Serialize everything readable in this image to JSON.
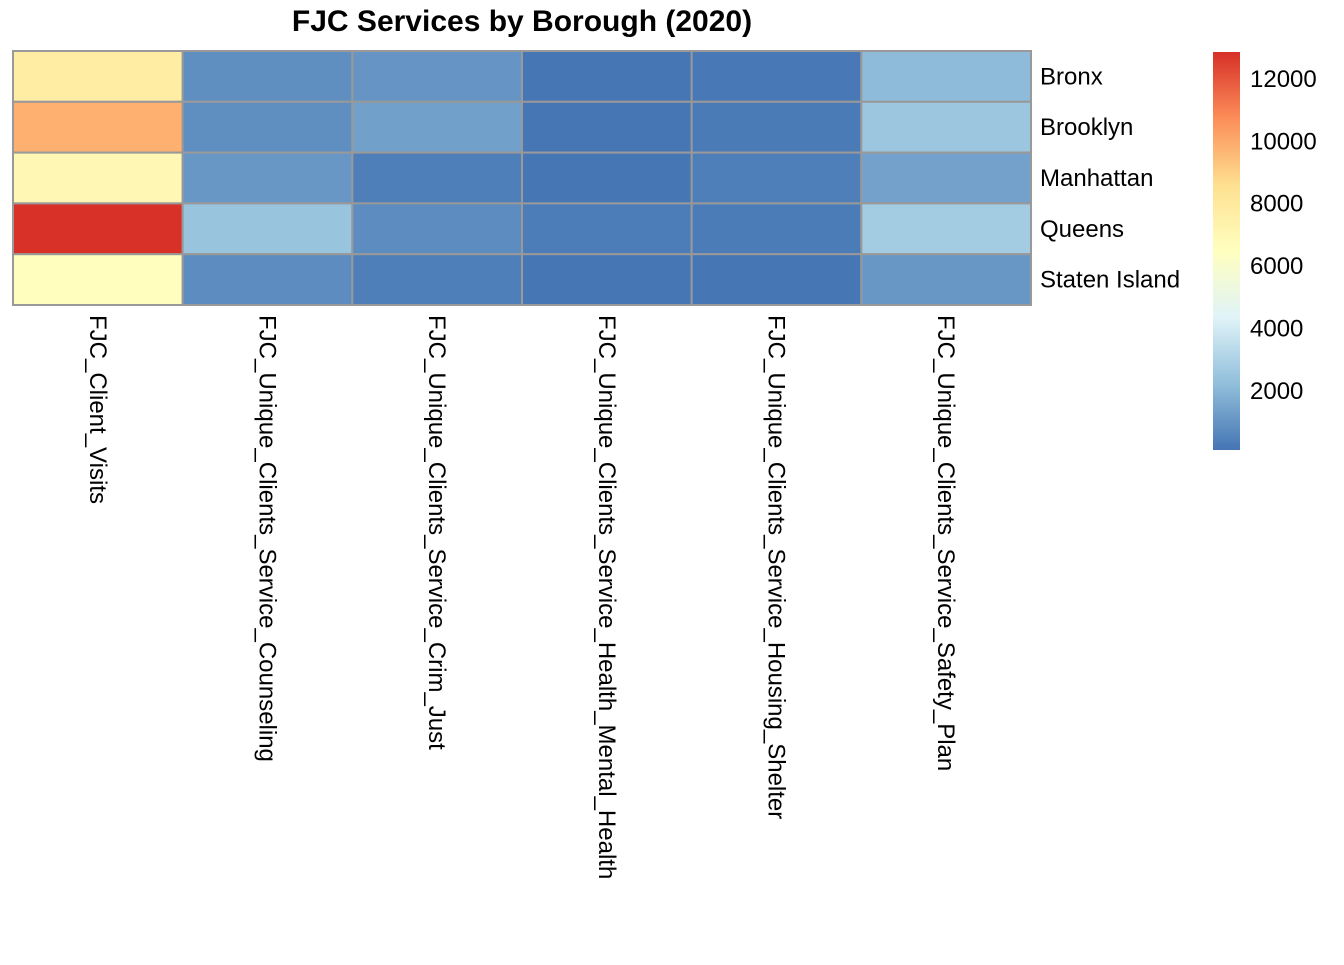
{
  "chart_data": {
    "type": "heatmap",
    "title": "FJC Services by Borough (2020)",
    "rows": [
      "Bronx",
      "Brooklyn",
      "Manhattan",
      "Queens",
      "Staten Island"
    ],
    "columns": [
      "FJC_Client_Visits",
      "FJC_Unique_Clients_Service_Counseling",
      "FJC_Unique_Clients_Service_Crim_Just",
      "FJC_Unique_Clients_Service_Health_Mental_Health",
      "FJC_Unique_Clients_Service_Housing_Shelter",
      "FJC_Unique_Clients_Service_Safety_Plan"
    ],
    "values": [
      [
        7700,
        800,
        1000,
        100,
        150,
        2100
      ],
      [
        9800,
        800,
        1300,
        100,
        250,
        2500
      ],
      [
        7000,
        1050,
        350,
        120,
        350,
        1350
      ],
      [
        12800,
        2400,
        750,
        300,
        280,
        2700
      ],
      [
        6500,
        750,
        350,
        120,
        100,
        1050
      ]
    ],
    "color_scale": {
      "range": [
        77,
        12830
      ],
      "colors": [
        "#4575B4",
        "#91BFDB",
        "#E0F3F8",
        "#FFFFBF",
        "#FEE090",
        "#FC8D59",
        "#D73027"
      ],
      "ticks": [
        2000,
        4000,
        6000,
        8000,
        10000,
        12000
      ],
      "tick_labels": [
        "2000",
        "4000",
        "6000",
        "8000",
        "10000",
        "12000"
      ]
    },
    "grid_color": "#999999"
  }
}
